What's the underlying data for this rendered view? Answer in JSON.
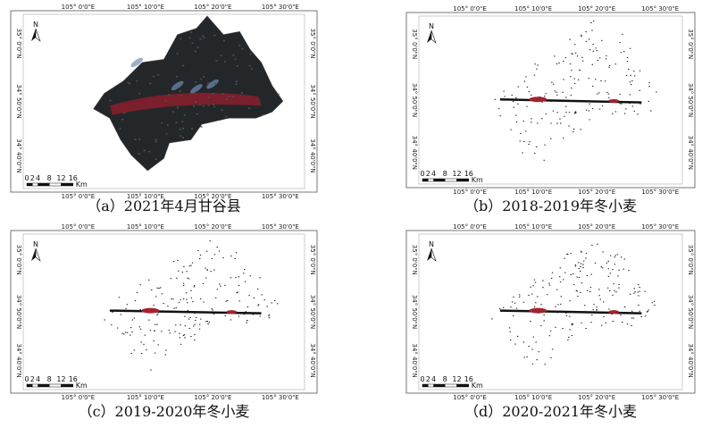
{
  "panels": [
    {
      "caption": "（a）2021年4月甘谷县",
      "top_labels": [
        "105° 0'0\"E",
        "105° 10'0\"E",
        "105° 20'0\"E",
        "105° 30'0\"E"
      ],
      "bottom_labels": [
        "105° 0'0\"E",
        "105° 10'0\"E",
        "105° 20'0\"E",
        "105° 30'0\"E"
      ],
      "left_labels": [
        "35° 0'0\"N",
        "34° 50'0\"N",
        "34° 40'0\"N"
      ],
      "right_labels": [
        "35° 0'0\"N",
        "34° 50'0\"N",
        "34° 40'0\"N"
      ],
      "north": "N",
      "scale": [
        "0",
        "2",
        "4",
        "8",
        "12",
        "16"
      ],
      "scale_unit": "Km"
    },
    {
      "caption": "（b）2018-2019年冬小麦",
      "top_labels": [
        "105° 0'0\"E",
        "105° 10'0\"E",
        "105° 20'0\"E",
        "105° 30'0\"E"
      ],
      "bottom_labels": [
        "105° 0'0\"E",
        "105° 10'0\"E",
        "105° 20'0\"E",
        "105° 30'0\"E"
      ],
      "left_labels": [
        "35° 0'0\"N",
        "34° 50'0\"N",
        "34° 40'0\"N"
      ],
      "right_labels": [
        "35° 0'0\"N",
        "34° 50'0\"N",
        "34° 40'0\"N"
      ],
      "north": "N",
      "scale": [
        "0",
        "2",
        "4",
        "8",
        "12",
        "16"
      ],
      "scale_unit": "Km"
    },
    {
      "caption": "（c）2019-2020年冬小麦",
      "top_labels": [
        "105° 0'0\"E",
        "105° 10'0\"E",
        "105° 20'0\"E",
        "105° 30'0\"E"
      ],
      "bottom_labels": [
        "105° 0'0\"E",
        "105° 10'0\"E",
        "105° 20'0\"E",
        "105° 30'0\"E"
      ],
      "left_labels": [
        "35° 0'0\"N",
        "34° 50'0\"N",
        "34° 40'0\"N"
      ],
      "right_labels": [
        "35° 0'0\"N",
        "34° 50'0\"N",
        "34° 40'0\"N"
      ],
      "north": "N",
      "scale": [
        "0",
        "2",
        "4",
        "8",
        "12",
        "16"
      ],
      "scale_unit": "Km"
    },
    {
      "caption": "（d）2020-2021年冬小麦",
      "top_labels": [
        "105° 0'0\"E",
        "105° 10'0\"E",
        "105° 20'0\"E",
        "105° 30'0\"E"
      ],
      "bottom_labels": [
        "105° 0'0\"E",
        "105° 10'0\"E",
        "105° 20'0\"E",
        "105° 30'0\"E"
      ],
      "left_labels": [
        "35° 0'0\"N",
        "34° 50'0\"N",
        "34° 40'0\"N"
      ],
      "right_labels": [
        "35° 0'0\"N",
        "34° 50'0\"N",
        "34° 40'0\"N"
      ],
      "north": "N",
      "scale": [
        "0",
        "2",
        "4",
        "8",
        "12",
        "16"
      ],
      "scale_unit": "Km"
    }
  ]
}
